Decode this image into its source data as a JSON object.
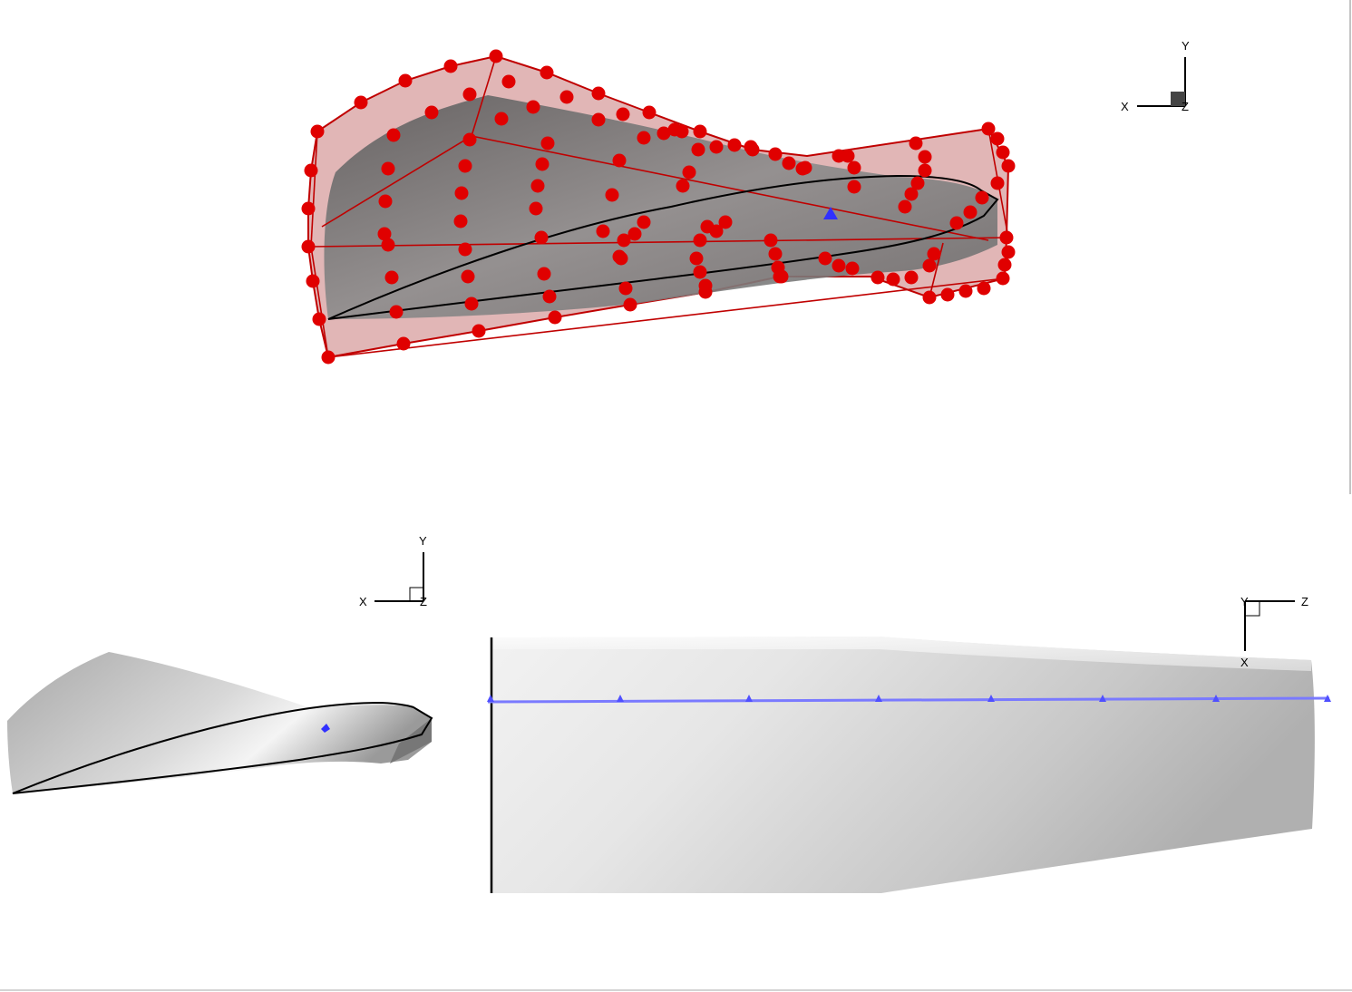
{
  "views": {
    "top": {
      "triad": {
        "y_label": "Y",
        "x_label": "X",
        "z_label": "Z"
      }
    },
    "bottom_left": {
      "triad": {
        "y_label": "Y",
        "x_label": "X",
        "z_label": "Z"
      }
    },
    "bottom_right": {
      "triad": {
        "y_label": "Y",
        "z_label": "Z",
        "x_label": "X"
      }
    }
  },
  "colors": {
    "control_point": "#e00000",
    "control_cage_edge": "#c00000",
    "cage_fill": "#b04040",
    "blade_surface": "#8a8a8a",
    "airfoil_outline": "#000000",
    "rotation_axis": "#4040ff"
  }
}
